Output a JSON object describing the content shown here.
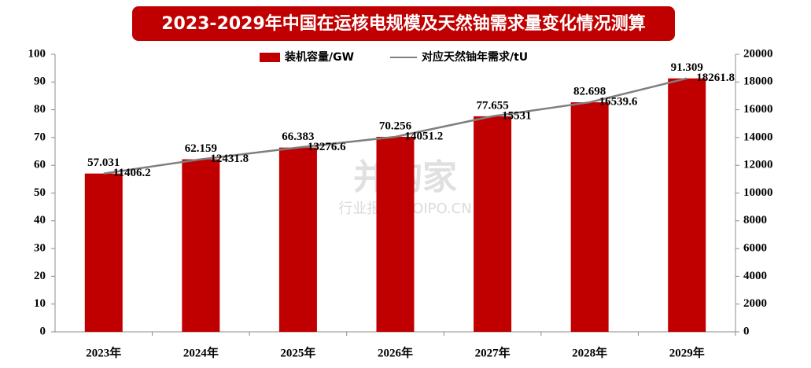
{
  "chart_data": {
    "type": "bar-line",
    "title": "2023-2029年中国在运核电规模及天然铀需求量变化情况测算",
    "categories": [
      "2023年",
      "2024年",
      "2025年",
      "2026年",
      "2027年",
      "2028年",
      "2029年"
    ],
    "series": [
      {
        "name": "装机容量/GW",
        "type": "bar",
        "color": "#c00000",
        "values": [
          57.031,
          62.159,
          66.383,
          70.256,
          77.655,
          82.698,
          91.309
        ]
      },
      {
        "name": "对应天然铀年需求/tU",
        "type": "line",
        "axis": "y2",
        "color": "#7f7f7f",
        "values": [
          11406.2,
          12431.8,
          13276.6,
          14051.2,
          15531,
          16539.6,
          18261.8
        ]
      }
    ],
    "ylim": [
      0,
      100
    ],
    "yticks": [
      0,
      10,
      20,
      30,
      40,
      50,
      60,
      70,
      80,
      90,
      100
    ],
    "y2lim": [
      0,
      20000
    ],
    "y2ticks": [
      0,
      2000,
      4000,
      6000,
      8000,
      10000,
      12000,
      14000,
      16000,
      18000,
      20000
    ],
    "grid": false,
    "legend": "top"
  },
  "watermark": {
    "brand": "并购家",
    "sub": "行业报告 IPOIPO.CN"
  }
}
